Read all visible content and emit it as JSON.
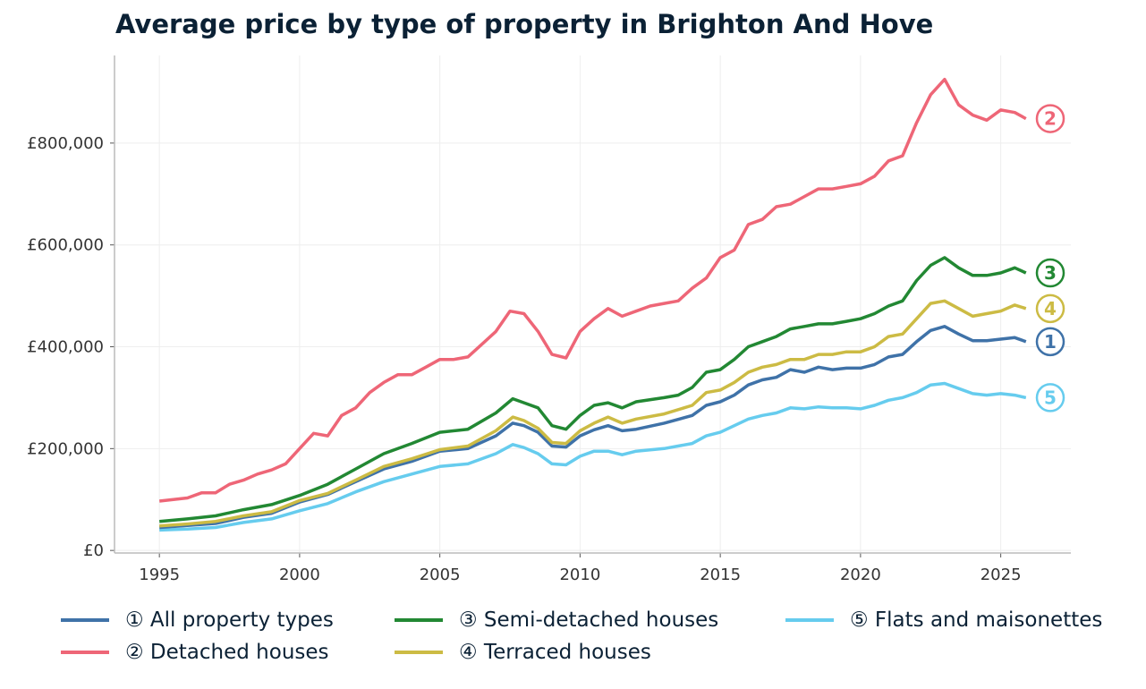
{
  "chart_data": {
    "type": "line",
    "title": "Average price by type of property in Brighton And Hove",
    "xlabel": "",
    "ylabel": "",
    "xlim": [
      1993.4,
      2027.5
    ],
    "ylim": [
      -5000,
      972000
    ],
    "xticks": [
      1995,
      2000,
      2005,
      2010,
      2015,
      2020,
      2025
    ],
    "xtick_labels": [
      "1995",
      "2000",
      "2005",
      "2010",
      "2015",
      "2020",
      "2025"
    ],
    "yticks": [
      0,
      200000,
      400000,
      600000,
      800000
    ],
    "ytick_labels": [
      "£0",
      "£200,000",
      "£400,000",
      "£600,000",
      "£800,000"
    ],
    "grid": true,
    "legend_position": "bottom",
    "series": [
      {
        "name": "① All property types",
        "marker": "1",
        "color": "#3f72a8",
        "points": [
          [
            1995,
            45000
          ],
          [
            1996,
            49000
          ],
          [
            1997,
            53000
          ],
          [
            1998,
            65000
          ],
          [
            1999,
            73000
          ],
          [
            2000,
            95000
          ],
          [
            2001,
            110000
          ],
          [
            2002,
            135000
          ],
          [
            2003,
            160000
          ],
          [
            2004,
            175000
          ],
          [
            2005,
            195000
          ],
          [
            2006,
            200000
          ],
          [
            2007,
            225000
          ],
          [
            2007.6,
            250000
          ],
          [
            2008,
            245000
          ],
          [
            2008.5,
            232000
          ],
          [
            2009,
            205000
          ],
          [
            2009.5,
            203000
          ],
          [
            2010,
            225000
          ],
          [
            2010.5,
            237000
          ],
          [
            2011,
            245000
          ],
          [
            2011.5,
            235000
          ],
          [
            2012,
            238000
          ],
          [
            2013,
            250000
          ],
          [
            2014,
            265000
          ],
          [
            2014.5,
            285000
          ],
          [
            2015,
            292000
          ],
          [
            2015.5,
            305000
          ],
          [
            2016,
            325000
          ],
          [
            2016.5,
            335000
          ],
          [
            2017,
            340000
          ],
          [
            2017.5,
            355000
          ],
          [
            2018,
            350000
          ],
          [
            2018.5,
            360000
          ],
          [
            2019,
            355000
          ],
          [
            2019.5,
            358000
          ],
          [
            2020,
            358000
          ],
          [
            2020.5,
            365000
          ],
          [
            2021,
            380000
          ],
          [
            2021.5,
            385000
          ],
          [
            2022,
            410000
          ],
          [
            2022.5,
            432000
          ],
          [
            2023,
            440000
          ],
          [
            2023.5,
            425000
          ],
          [
            2024,
            412000
          ],
          [
            2024.5,
            412000
          ],
          [
            2025,
            415000
          ],
          [
            2025.5,
            418000
          ],
          [
            2025.9,
            410000
          ]
        ]
      },
      {
        "name": "② Detached houses",
        "marker": "2",
        "color": "#ee6677",
        "points": [
          [
            1995,
            97000
          ],
          [
            1995.5,
            100000
          ],
          [
            1996,
            103000
          ],
          [
            1996.5,
            113000
          ],
          [
            1997,
            113000
          ],
          [
            1997.5,
            130000
          ],
          [
            1998,
            138000
          ],
          [
            1998.5,
            150000
          ],
          [
            1999,
            158000
          ],
          [
            1999.5,
            170000
          ],
          [
            2000,
            200000
          ],
          [
            2000.5,
            230000
          ],
          [
            2001,
            225000
          ],
          [
            2001.5,
            265000
          ],
          [
            2002,
            280000
          ],
          [
            2002.5,
            310000
          ],
          [
            2003,
            330000
          ],
          [
            2003.5,
            345000
          ],
          [
            2004,
            345000
          ],
          [
            2004.5,
            360000
          ],
          [
            2005,
            375000
          ],
          [
            2005.5,
            375000
          ],
          [
            2006,
            380000
          ],
          [
            2006.5,
            405000
          ],
          [
            2007,
            430000
          ],
          [
            2007.5,
            470000
          ],
          [
            2008,
            465000
          ],
          [
            2008.5,
            430000
          ],
          [
            2009,
            385000
          ],
          [
            2009.5,
            378000
          ],
          [
            2010,
            430000
          ],
          [
            2010.5,
            455000
          ],
          [
            2011,
            475000
          ],
          [
            2011.5,
            460000
          ],
          [
            2012,
            470000
          ],
          [
            2012.5,
            480000
          ],
          [
            2013,
            485000
          ],
          [
            2013.5,
            490000
          ],
          [
            2014,
            515000
          ],
          [
            2014.5,
            535000
          ],
          [
            2015,
            575000
          ],
          [
            2015.5,
            590000
          ],
          [
            2016,
            640000
          ],
          [
            2016.5,
            650000
          ],
          [
            2017,
            675000
          ],
          [
            2017.5,
            680000
          ],
          [
            2018,
            695000
          ],
          [
            2018.5,
            710000
          ],
          [
            2019,
            710000
          ],
          [
            2019.5,
            715000
          ],
          [
            2020,
            720000
          ],
          [
            2020.5,
            735000
          ],
          [
            2021,
            765000
          ],
          [
            2021.5,
            775000
          ],
          [
            2022,
            840000
          ],
          [
            2022.5,
            895000
          ],
          [
            2023,
            925000
          ],
          [
            2023.5,
            875000
          ],
          [
            2024,
            855000
          ],
          [
            2024.5,
            845000
          ],
          [
            2025,
            865000
          ],
          [
            2025.5,
            860000
          ],
          [
            2025.9,
            848000
          ]
        ]
      },
      {
        "name": "③ Semi-detached houses",
        "marker": "3",
        "color": "#228833",
        "points": [
          [
            1995,
            57000
          ],
          [
            1996,
            62000
          ],
          [
            1997,
            68000
          ],
          [
            1998,
            80000
          ],
          [
            1999,
            90000
          ],
          [
            2000,
            108000
          ],
          [
            2001,
            130000
          ],
          [
            2002,
            160000
          ],
          [
            2003,
            190000
          ],
          [
            2004,
            210000
          ],
          [
            2005,
            232000
          ],
          [
            2006,
            238000
          ],
          [
            2007,
            270000
          ],
          [
            2007.6,
            298000
          ],
          [
            2008,
            290000
          ],
          [
            2008.5,
            280000
          ],
          [
            2009,
            245000
          ],
          [
            2009.5,
            238000
          ],
          [
            2010,
            265000
          ],
          [
            2010.5,
            285000
          ],
          [
            2011,
            290000
          ],
          [
            2011.5,
            280000
          ],
          [
            2012,
            292000
          ],
          [
            2013,
            300000
          ],
          [
            2013.5,
            305000
          ],
          [
            2014,
            320000
          ],
          [
            2014.5,
            350000
          ],
          [
            2015,
            355000
          ],
          [
            2015.5,
            375000
          ],
          [
            2016,
            400000
          ],
          [
            2016.5,
            410000
          ],
          [
            2017,
            420000
          ],
          [
            2017.5,
            435000
          ],
          [
            2018,
            440000
          ],
          [
            2018.5,
            445000
          ],
          [
            2019,
            445000
          ],
          [
            2019.5,
            450000
          ],
          [
            2020,
            455000
          ],
          [
            2020.5,
            465000
          ],
          [
            2021,
            480000
          ],
          [
            2021.5,
            490000
          ],
          [
            2022,
            530000
          ],
          [
            2022.5,
            560000
          ],
          [
            2023,
            575000
          ],
          [
            2023.5,
            555000
          ],
          [
            2024,
            540000
          ],
          [
            2024.5,
            540000
          ],
          [
            2025,
            545000
          ],
          [
            2025.5,
            555000
          ],
          [
            2025.9,
            545000
          ]
        ]
      },
      {
        "name": "④ Terraced houses",
        "marker": "4",
        "color": "#ccbb44",
        "points": [
          [
            1995,
            48000
          ],
          [
            1996,
            52000
          ],
          [
            1997,
            57000
          ],
          [
            1998,
            68000
          ],
          [
            1999,
            76000
          ],
          [
            2000,
            98000
          ],
          [
            2001,
            112000
          ],
          [
            2002,
            138000
          ],
          [
            2003,
            165000
          ],
          [
            2004,
            180000
          ],
          [
            2005,
            198000
          ],
          [
            2006,
            205000
          ],
          [
            2007,
            235000
          ],
          [
            2007.6,
            262000
          ],
          [
            2008,
            255000
          ],
          [
            2008.5,
            240000
          ],
          [
            2009,
            212000
          ],
          [
            2009.5,
            210000
          ],
          [
            2010,
            235000
          ],
          [
            2010.5,
            250000
          ],
          [
            2011,
            262000
          ],
          [
            2011.5,
            250000
          ],
          [
            2012,
            258000
          ],
          [
            2013,
            268000
          ],
          [
            2014,
            285000
          ],
          [
            2014.5,
            310000
          ],
          [
            2015,
            315000
          ],
          [
            2015.5,
            330000
          ],
          [
            2016,
            350000
          ],
          [
            2016.5,
            360000
          ],
          [
            2017,
            365000
          ],
          [
            2017.5,
            375000
          ],
          [
            2018,
            375000
          ],
          [
            2018.5,
            385000
          ],
          [
            2019,
            385000
          ],
          [
            2019.5,
            390000
          ],
          [
            2020,
            390000
          ],
          [
            2020.5,
            400000
          ],
          [
            2021,
            420000
          ],
          [
            2021.5,
            425000
          ],
          [
            2022,
            455000
          ],
          [
            2022.5,
            485000
          ],
          [
            2023,
            490000
          ],
          [
            2023.5,
            475000
          ],
          [
            2024,
            460000
          ],
          [
            2024.5,
            465000
          ],
          [
            2025,
            470000
          ],
          [
            2025.5,
            482000
          ],
          [
            2025.9,
            475000
          ]
        ]
      },
      {
        "name": "⑤ Flats and maisonettes",
        "marker": "5",
        "color": "#66ccee",
        "points": [
          [
            1995,
            40000
          ],
          [
            1996,
            42000
          ],
          [
            1997,
            45000
          ],
          [
            1998,
            55000
          ],
          [
            1999,
            62000
          ],
          [
            2000,
            78000
          ],
          [
            2001,
            92000
          ],
          [
            2002,
            115000
          ],
          [
            2003,
            135000
          ],
          [
            2004,
            150000
          ],
          [
            2005,
            165000
          ],
          [
            2006,
            170000
          ],
          [
            2007,
            190000
          ],
          [
            2007.6,
            208000
          ],
          [
            2008,
            202000
          ],
          [
            2008.5,
            190000
          ],
          [
            2009,
            170000
          ],
          [
            2009.5,
            168000
          ],
          [
            2010,
            185000
          ],
          [
            2010.5,
            195000
          ],
          [
            2011,
            195000
          ],
          [
            2011.5,
            188000
          ],
          [
            2012,
            195000
          ],
          [
            2013,
            200000
          ],
          [
            2014,
            210000
          ],
          [
            2014.5,
            225000
          ],
          [
            2015,
            232000
          ],
          [
            2015.5,
            245000
          ],
          [
            2016,
            258000
          ],
          [
            2016.5,
            265000
          ],
          [
            2017,
            270000
          ],
          [
            2017.5,
            280000
          ],
          [
            2018,
            278000
          ],
          [
            2018.5,
            282000
          ],
          [
            2019,
            280000
          ],
          [
            2019.5,
            280000
          ],
          [
            2020,
            278000
          ],
          [
            2020.5,
            285000
          ],
          [
            2021,
            295000
          ],
          [
            2021.5,
            300000
          ],
          [
            2022,
            310000
          ],
          [
            2022.5,
            325000
          ],
          [
            2023,
            328000
          ],
          [
            2023.5,
            318000
          ],
          [
            2024,
            308000
          ],
          [
            2024.5,
            305000
          ],
          [
            2025,
            308000
          ],
          [
            2025.5,
            305000
          ],
          [
            2025.9,
            300000
          ]
        ]
      }
    ]
  }
}
